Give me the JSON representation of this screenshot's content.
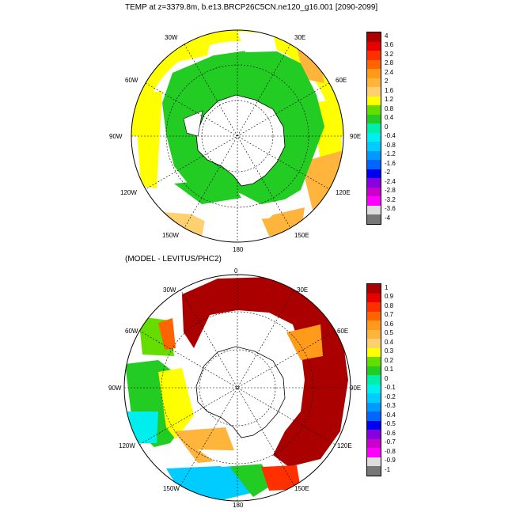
{
  "titles": {
    "top": "TEMP at z=3379.8m, b.e13.BRCP26C5CN.ne120_g16.001 [2090-2099]",
    "bottom": "(MODEL - LEVITUS/PHC2)"
  },
  "map_top": {
    "lon_labels": [
      "30W",
      "30E",
      "60W",
      "60E",
      "90W",
      "90E",
      "120W",
      "120E",
      "150W",
      "150E",
      "180"
    ]
  },
  "map_bottom": {
    "lon_labels": [
      "0",
      "30W",
      "30E",
      "60W",
      "60E",
      "90W",
      "90E",
      "120W",
      "120E",
      "150W",
      "150E",
      "180"
    ]
  },
  "colorbar_top": {
    "labels": [
      "4",
      "3.6",
      "3.2",
      "2.8",
      "2.4",
      "2",
      "1.6",
      "1.2",
      "0.8",
      "0.4",
      "0",
      "-0.4",
      "-0.8",
      "-1.2",
      "-1.6",
      "-2",
      "-2.4",
      "-2.8",
      "-3.2",
      "-3.6",
      "-4"
    ],
    "colors": [
      "#aa0000",
      "#e60000",
      "#ff3000",
      "#ff6400",
      "#ff9a1a",
      "#ffb43c",
      "#ffd070",
      "#ffff00",
      "#66dd00",
      "#22cc22",
      "#00eeaa",
      "#00eeee",
      "#00ccff",
      "#0099ff",
      "#0066ff",
      "#0000ee",
      "#8800dd",
      "#cc00cc",
      "#ff00ff",
      "#dddddd",
      "#777777"
    ]
  },
  "colorbar_bottom": {
    "labels": [
      "1",
      "0.9",
      "0.8",
      "0.7",
      "0.6",
      "0.5",
      "0.4",
      "0.3",
      "0.2",
      "0.1",
      "0",
      "-0.1",
      "-0.2",
      "-0.3",
      "-0.4",
      "-0.5",
      "-0.6",
      "-0.7",
      "-0.8",
      "-0.9",
      "-1"
    ],
    "colors": [
      "#aa0000",
      "#e60000",
      "#ff3000",
      "#ff6400",
      "#ff9a1a",
      "#ffb43c",
      "#ffd070",
      "#ffff00",
      "#66dd00",
      "#22cc22",
      "#00eeaa",
      "#00eeee",
      "#00ccff",
      "#0099ff",
      "#0066ff",
      "#0000ee",
      "#8800dd",
      "#cc00cc",
      "#ff00ff",
      "#dddddd",
      "#777777"
    ]
  }
}
